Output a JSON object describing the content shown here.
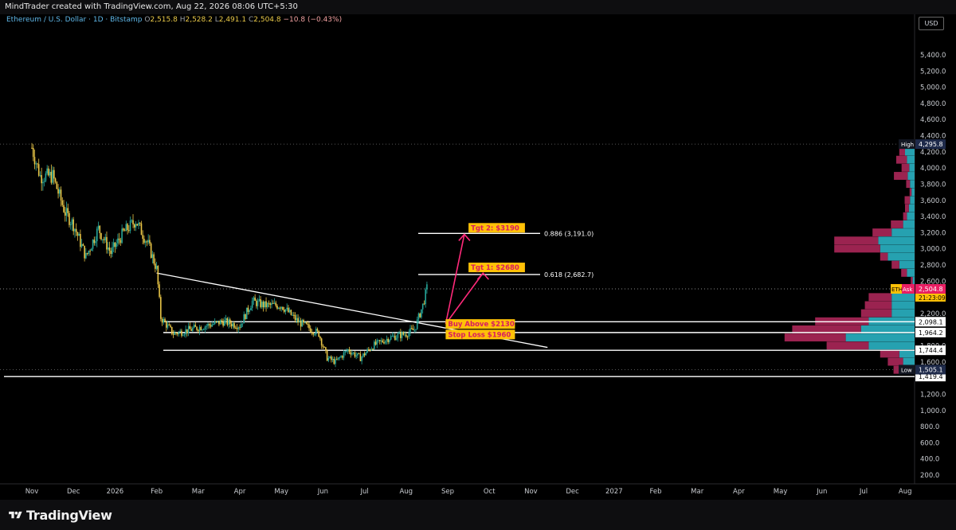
{
  "header": {
    "attribution": "MindTrader created with TradingView.com, Aug 22, 2026 08:06 UTC+5:30"
  },
  "legend": {
    "symbol": "Ethereum / U.S. Dollar · 1D · Bitstamp",
    "open_label": "O",
    "open": "2,515.8",
    "high_label": "H",
    "high": "2,528.2",
    "low_label": "L",
    "low": "2,491.1",
    "close_label": "C",
    "close": "2,504.8",
    "change": "−10.8 (−0.43%)"
  },
  "currency": "USD",
  "footer": {
    "brand": "TradingView"
  },
  "colors": {
    "up": "#26a69a",
    "down": "#e8c547",
    "vp_up": "#26a1b0",
    "vp_down": "#9b2350",
    "arrow": "#ff2a7a",
    "label_bg": "#ffc107",
    "label_text": "#d81b60"
  },
  "chart_data": {
    "type": "candlestick",
    "ylim": [
      100,
      5800
    ],
    "y_ticks": [
      "5,400.0",
      "5,200.0",
      "5,000.0",
      "4,800.0",
      "4,600.0",
      "4,400.0",
      "4,200.0",
      "4,000.0",
      "3,800.0",
      "3,600.0",
      "3,400.0",
      "3,200.0",
      "3,000.0",
      "2,800.0",
      "2,600.0",
      "2,200.0",
      "1,800.0",
      "1,600.0",
      "1,200.0",
      "1,000.0",
      "800.0",
      "600.0",
      "400.0",
      "200.0"
    ],
    "y_tick_values": [
      5400,
      5200,
      5000,
      4800,
      4600,
      4400,
      4200,
      4000,
      3800,
      3600,
      3400,
      3200,
      3000,
      2800,
      2600,
      2200,
      1800,
      1600,
      1200,
      1000,
      800,
      600,
      400,
      200
    ],
    "x_ticks": [
      "Nov",
      "Dec",
      "2026",
      "Feb",
      "Mar",
      "Apr",
      "May",
      "Jun",
      "Jul",
      "Aug",
      "Sep",
      "Oct",
      "Nov",
      "Dec",
      "2027",
      "Feb",
      "Mar",
      "Apr",
      "May",
      "Jun",
      "Jul",
      "Aug"
    ],
    "x_tick_months": [
      0,
      1,
      2,
      3,
      4,
      5,
      6,
      7,
      8,
      9,
      10,
      11,
      12,
      13,
      14,
      15,
      16,
      17,
      18,
      19,
      20,
      21
    ],
    "price_path": [
      [
        0.0,
        4250
      ],
      [
        0.2,
        3900
      ],
      [
        0.5,
        3900
      ],
      [
        0.8,
        3450
      ],
      [
        1.0,
        3300
      ],
      [
        1.3,
        2900
      ],
      [
        1.6,
        3250
      ],
      [
        1.9,
        2950
      ],
      [
        2.2,
        3200
      ],
      [
        2.5,
        3350
      ],
      [
        2.8,
        3050
      ],
      [
        3.0,
        2750
      ],
      [
        3.1,
        2150
      ],
      [
        3.4,
        1950
      ],
      [
        3.8,
        2000
      ],
      [
        4.2,
        2050
      ],
      [
        4.6,
        2100
      ],
      [
        5.0,
        2050
      ],
      [
        5.3,
        2350
      ],
      [
        5.6,
        2300
      ],
      [
        6.0,
        2300
      ],
      [
        6.4,
        2100
      ],
      [
        6.9,
        1950
      ],
      [
        7.1,
        1650
      ],
      [
        7.3,
        1600
      ],
      [
        7.6,
        1750
      ],
      [
        7.9,
        1650
      ],
      [
        8.2,
        1800
      ],
      [
        8.6,
        1900
      ],
      [
        9.0,
        1950
      ],
      [
        9.2,
        2000
      ],
      [
        9.4,
        2300
      ],
      [
        9.5,
        2510
      ]
    ],
    "horizontal_levels": [
      {
        "price": 2098.1,
        "label": "2,098.1"
      },
      {
        "price": 1964.2,
        "label": "1,964.2"
      },
      {
        "price": 1744.4,
        "label": "1,744.4"
      },
      {
        "price": 1419.4,
        "label": "1,419.4"
      }
    ],
    "fib_levels": [
      {
        "price": 3191.0,
        "label": "0.886 (3,191.0)"
      },
      {
        "price": 2682.7,
        "label": "0.618 (2,682.7)"
      }
    ],
    "trendline": [
      [
        3.0,
        2700
      ],
      [
        12.4,
        1780
      ]
    ],
    "annotations": [
      {
        "text": "Tgt 2: $3190",
        "price": 3260
      },
      {
        "text": "Tgt 1: $2680",
        "price": 2770
      },
      {
        "text": "Buy Above $2130",
        "price": 2070
      },
      {
        "text": "Stop Loss $1960",
        "price": 1940
      }
    ],
    "badges": [
      {
        "tag": "High",
        "value": "4,295.8",
        "price": 4295.8
      },
      {
        "tag": "ETH",
        "tag2": "Ask",
        "value": "2,504.8",
        "price": 2504.8,
        "sub": "21:23:09"
      },
      {
        "tag": "Low",
        "value": "1,505.1",
        "price": 1505.1
      }
    ],
    "volume_profile": [
      {
        "price": 4200,
        "up": 25,
        "down": 15
      },
      {
        "price": 4100,
        "up": 20,
        "down": 28
      },
      {
        "price": 4000,
        "up": 14,
        "down": 20
      },
      {
        "price": 3900,
        "up": 18,
        "down": 36
      },
      {
        "price": 3800,
        "up": 12,
        "down": 10
      },
      {
        "price": 3700,
        "up": 8,
        "down": 5
      },
      {
        "price": 3600,
        "up": 12,
        "down": 14
      },
      {
        "price": 3500,
        "up": 15,
        "down": 10
      },
      {
        "price": 3400,
        "up": 20,
        "down": 10
      },
      {
        "price": 3300,
        "up": 30,
        "down": 32
      },
      {
        "price": 3200,
        "up": 60,
        "down": 50
      },
      {
        "price": 3100,
        "up": 95,
        "down": 115
      },
      {
        "price": 3000,
        "up": 90,
        "down": 120
      },
      {
        "price": 2900,
        "up": 70,
        "down": 20
      },
      {
        "price": 2800,
        "up": 40,
        "down": 20
      },
      {
        "price": 2700,
        "up": 20,
        "down": 15
      },
      {
        "price": 2600,
        "up": 5,
        "down": 5
      },
      {
        "price": 2400,
        "up": 60,
        "down": 60
      },
      {
        "price": 2300,
        "up": 60,
        "down": 70
      },
      {
        "price": 2200,
        "up": 60,
        "down": 80
      },
      {
        "price": 2100,
        "up": 120,
        "down": 140
      },
      {
        "price": 2000,
        "up": 140,
        "down": 180
      },
      {
        "price": 1900,
        "up": 180,
        "down": 160
      },
      {
        "price": 1800,
        "up": 120,
        "down": 110
      },
      {
        "price": 1700,
        "up": 40,
        "down": 50
      },
      {
        "price": 1600,
        "up": 30,
        "down": 40
      },
      {
        "price": 1500,
        "up": 20,
        "down": 35
      }
    ]
  }
}
